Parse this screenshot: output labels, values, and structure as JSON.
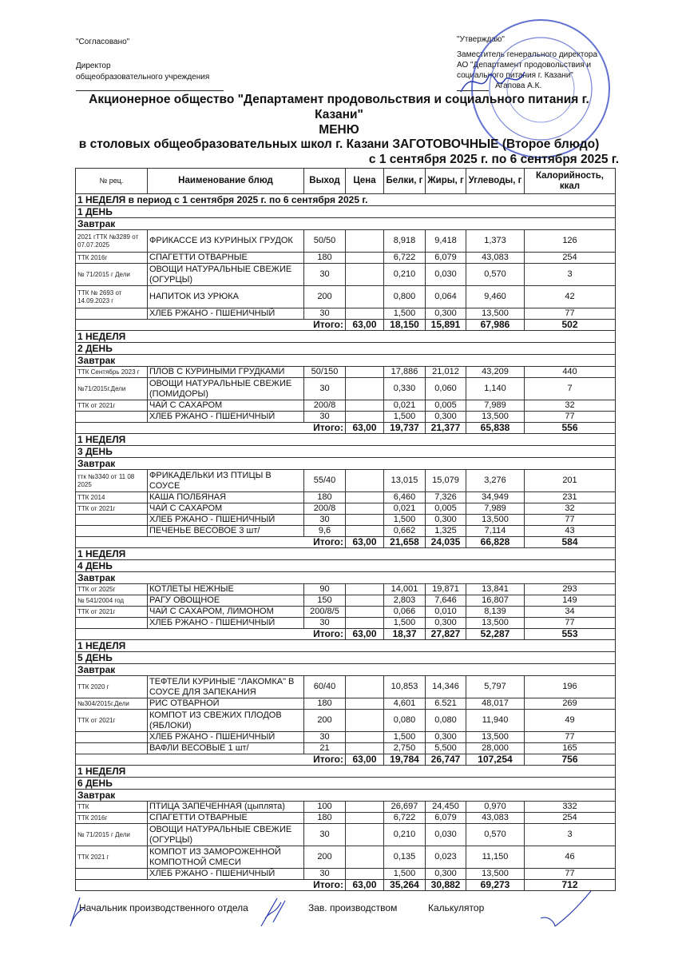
{
  "header": {
    "left_approved": "\"Согласовано\"",
    "left_position_1": "Директор",
    "left_position_2": "общеобразовательного учреждения",
    "right_approved": "\"Утверждаю\"",
    "right_position_1": "Заместитель генерального директора",
    "right_position_2": "АО \"Департамент продовольствия и",
    "right_position_3": "социального питания г. Казани\"",
    "right_name": "Агапова А.К."
  },
  "stamp": {
    "text": "РЕСПУБЛИКА ТАТАРСТАН ГАЗАН ШӘҺӘРЕ ИНН 1660075919 АКЦИОНЕРНОЕ ОБЩЕСТВО ДЛЯ ДОКУМЕНТОВ №7",
    "color": "#3b4fc4"
  },
  "title": {
    "org_line_1": "Акционерное общество \"Департамент продовольствия и социального питания г.",
    "org_line_2": "Казани\"",
    "menu": "МЕНЮ",
    "subtitle": "в столовых общеобразовательных школ г. Казани ЗАГОТОВОЧНЫЕ (Второе блюдо)",
    "period": "с 1 сентября 2025 г. по 6 сентября 2025 г."
  },
  "table": {
    "columns": [
      "№ рец.",
      "Наименование блюд",
      "Выход",
      "Цена",
      "Белки, г",
      "Жиры, г",
      "Углеводы, г",
      "Калорийность, ккал"
    ],
    "days": [
      {
        "week": "1 НЕДЕЛЯ в период  с 1 сентября 2025 г. по 6 сентября 2025 г.",
        "day": "1 ДЕНЬ",
        "meal": "Завтрак",
        "items": [
          {
            "code": "2021 гТТК №3289 от 07.07.2025",
            "name": "ФРИКАССЕ ИЗ КУРИНЫХ ГРУДОК",
            "yield": "50/50",
            "price": "",
            "protein": "8,918",
            "fat": "9,418",
            "carbs": "1,373",
            "kcal": "126",
            "lines": 2
          },
          {
            "code": "ТТК 2016г",
            "name": "СПАГЕТТИ ОТВАРНЫЕ",
            "yield": "180",
            "price": "",
            "protein": "6,722",
            "fat": "6,079",
            "carbs": "43,083",
            "kcal": "254",
            "lines": 1
          },
          {
            "code": "№ 71/2015 г Дели",
            "name": "ОВОЩИ НАТУРАЛЬНЫЕ СВЕЖИЕ (ОГУРЦЫ)",
            "yield": "30",
            "price": "",
            "protein": "0,210",
            "fat": "0,030",
            "carbs": "0,570",
            "kcal": "3",
            "lines": 2
          },
          {
            "code": "ТТК № 2693 от 14.09.2023 г",
            "name": "НАПИТОК ИЗ УРЮКА",
            "yield": "200",
            "price": "",
            "protein": "0,800",
            "fat": "0,064",
            "carbs": "9,460",
            "kcal": "42",
            "lines": 2
          },
          {
            "code": "",
            "name": "ХЛЕБ РЖАНО - ПШЕНИЧНЫЙ",
            "yield": "30",
            "price": "",
            "protein": "1,500",
            "fat": "0,300",
            "carbs": "13,500",
            "kcal": "77",
            "lines": 1
          }
        ],
        "total": {
          "label": "Итого:",
          "price": "63,00",
          "protein": "18,150",
          "fat": "15,891",
          "carbs": "67,986",
          "kcal": "502"
        }
      },
      {
        "week": "1 НЕДЕЛЯ",
        "day": "2 ДЕНЬ",
        "meal": "Завтрак",
        "items": [
          {
            "code": "ТТК Сентябрь 2023 г",
            "name": "ПЛОВ С КУРИНЫМИ ГРУДКАМИ",
            "yield": "50/150",
            "price": "",
            "protein": "17,886",
            "fat": "21,012",
            "carbs": "43,209",
            "kcal": "440",
            "lines": 1
          },
          {
            "code": "№71/2015г.Дели",
            "name": "ОВОЩИ НАТУРАЛЬНЫЕ СВЕЖИЕ (ПОМИДОРЫ)",
            "yield": "30",
            "price": "",
            "protein": "0,330",
            "fat": "0,060",
            "carbs": "1,140",
            "kcal": "7",
            "lines": 2
          },
          {
            "code": "ТТК от 2021г",
            "name": "ЧАЙ С САХАРОМ",
            "yield": "200/8",
            "price": "",
            "protein": "0,021",
            "fat": "0,005",
            "carbs": "7,989",
            "kcal": "32",
            "lines": 1
          },
          {
            "code": "",
            "name": "ХЛЕБ РЖАНО - ПШЕНИЧНЫЙ",
            "yield": "30",
            "price": "",
            "protein": "1,500",
            "fat": "0,300",
            "carbs": "13,500",
            "kcal": "77",
            "lines": 1
          }
        ],
        "total": {
          "label": "Итого:",
          "price": "63,00",
          "protein": "19,737",
          "fat": "21,377",
          "carbs": "65,838",
          "kcal": "556"
        }
      },
      {
        "week": "1 НЕДЕЛЯ",
        "day": "3 ДЕНЬ",
        "meal": "Завтрак",
        "items": [
          {
            "code": "ттк №3340 от 11 08 2025",
            "name": "ФРИКАДЕЛЬКИ ИЗ ПТИЦЫ В СОУСЕ",
            "yield": "55/40",
            "price": "",
            "protein": "13,015",
            "fat": "15,079",
            "carbs": "3,276",
            "kcal": "201",
            "lines": 2
          },
          {
            "code": "ТТК 2014",
            "name": "КАША ПОЛБЯНАЯ",
            "yield": "180",
            "price": "",
            "protein": "6,460",
            "fat": "7,326",
            "carbs": "34,949",
            "kcal": "231",
            "lines": 1
          },
          {
            "code": "ТТК от 2021г",
            "name": "ЧАЙ С САХАРОМ",
            "yield": "200/8",
            "price": "",
            "protein": "0,021",
            "fat": "0,005",
            "carbs": "7,989",
            "kcal": "32",
            "lines": 1
          },
          {
            "code": "",
            "name": "ХЛЕБ РЖАНО - ПШЕНИЧНЫЙ",
            "yield": "30",
            "price": "",
            "protein": "1,500",
            "fat": "0,300",
            "carbs": "13,500",
            "kcal": "77",
            "lines": 1
          },
          {
            "code": "",
            "name": "ПЕЧЕНЬЕ ВЕСОВОЕ 3 шт/",
            "yield": "9,6",
            "price": "",
            "protein": "0,662",
            "fat": "1,325",
            "carbs": "7,114",
            "kcal": "43",
            "lines": 1
          }
        ],
        "total": {
          "label": "Итого:",
          "price": "63,00",
          "protein": "21,658",
          "fat": "24,035",
          "carbs": "66,828",
          "kcal": "584"
        }
      },
      {
        "week": "1 НЕДЕЛЯ",
        "day": "4 ДЕНЬ",
        "meal": "Завтрак",
        "items": [
          {
            "code": "ТТК от 2025г",
            "name": "КОТЛЕТЫ НЕЖНЫЕ",
            "yield": "90",
            "price": "",
            "protein": "14,001",
            "fat": "19,871",
            "carbs": "13,841",
            "kcal": "293",
            "lines": 1
          },
          {
            "code": "№ 541/2004 год",
            "name": "РАГУ ОВОЩНОЕ",
            "yield": "150",
            "price": "",
            "protein": "2,803",
            "fat": "7,646",
            "carbs": "16,807",
            "kcal": "149",
            "lines": 1
          },
          {
            "code": "ТТК от 2021г",
            "name": "ЧАЙ  С САХАРОМ, ЛИМОНОМ",
            "yield": "200/8/5",
            "price": "",
            "protein": "0,066",
            "fat": "0,010",
            "carbs": "8,139",
            "kcal": "34",
            "lines": 1
          },
          {
            "code": "",
            "name": "ХЛЕБ РЖАНО - ПШЕНИЧНЫЙ",
            "yield": "30",
            "price": "",
            "protein": "1,500",
            "fat": "0,300",
            "carbs": "13,500",
            "kcal": "77",
            "lines": 1
          }
        ],
        "total": {
          "label": "Итого:",
          "price": "63,00",
          "protein": "18,37",
          "fat": "27,827",
          "carbs": "52,287",
          "kcal": "553"
        }
      },
      {
        "week": "1 НЕДЕЛЯ",
        "day": "5 ДЕНЬ",
        "meal": "Завтрак",
        "items": [
          {
            "code": "ТТК 2020 г",
            "name": "ТЕФТЕЛИ КУРИНЫЕ \"ЛАКОМКА\" В СОУСЕ ДЛЯ ЗАПЕКАНИЯ",
            "yield": "60/40",
            "price": "",
            "protein": "10,853",
            "fat": "14,346",
            "carbs": "5,797",
            "kcal": "196",
            "lines": 2
          },
          {
            "code": "№304/2015г.Дели",
            "name": "РИС ОТВАРНОЙ",
            "yield": "180",
            "price": "",
            "protein": "4,601",
            "fat": "6.521",
            "carbs": "48,017",
            "kcal": "269",
            "lines": 1
          },
          {
            "code": "ТТК от 2021г",
            "name": "КОМПОТ ИЗ СВЕЖИХ ПЛОДОВ (ЯБЛОКИ)",
            "yield": "200",
            "price": "",
            "protein": "0,080",
            "fat": "0,080",
            "carbs": "11,940",
            "kcal": "49",
            "lines": 2
          },
          {
            "code": "",
            "name": "ХЛЕБ РЖАНО - ПШЕНИЧНЫЙ",
            "yield": "30",
            "price": "",
            "protein": "1,500",
            "fat": "0,300",
            "carbs": "13,500",
            "kcal": "77",
            "lines": 1
          },
          {
            "code": "",
            "name": "ВАФЛИ ВЕСОВЫЕ 1 шт/",
            "yield": "21",
            "price": "",
            "protein": "2,750",
            "fat": "5,500",
            "carbs": "28,000",
            "kcal": "165",
            "lines": 1
          }
        ],
        "total": {
          "label": "Итого:",
          "price": "63,00",
          "protein": "19,784",
          "fat": "26,747",
          "carbs": "107,254",
          "kcal": "756"
        }
      },
      {
        "week": "1 НЕДЕЛЯ",
        "day": "6 ДЕНЬ",
        "meal": "Завтрак",
        "items": [
          {
            "code": "ТТК",
            "name": "ПТИЦА ЗАПЕЧЕННАЯ (цыплята)",
            "yield": "100",
            "price": "",
            "protein": "26,697",
            "fat": "24,450",
            "carbs": "0,970",
            "kcal": "332",
            "lines": 1
          },
          {
            "code": "ТТК 2016г",
            "name": "СПАГЕТТИ ОТВАРНЫЕ",
            "yield": "180",
            "price": "",
            "protein": "6,722",
            "fat": "6,079",
            "carbs": "43,083",
            "kcal": "254",
            "lines": 1
          },
          {
            "code": "№ 71/2015 г Дели",
            "name": "ОВОЩИ НАТУРАЛЬНЫЕ СВЕЖИЕ (ОГУРЦЫ)",
            "yield": "30",
            "price": "",
            "protein": "0,210",
            "fat": "0,030",
            "carbs": "0,570",
            "kcal": "3",
            "lines": 2
          },
          {
            "code": "ТТК 2021 г",
            "name": "КОМПОТ ИЗ ЗАМОРОЖЕННОЙ КОМПОТНОЙ СМЕСИ",
            "yield": "200",
            "price": "",
            "protein": "0,135",
            "fat": "0,023",
            "carbs": "11,150",
            "kcal": "46",
            "lines": 2
          },
          {
            "code": "",
            "name": "ХЛЕБ РЖАНО - ПШЕНИЧНЫЙ",
            "yield": "30",
            "price": "",
            "protein": "1,500",
            "fat": "0,300",
            "carbs": "13,500",
            "kcal": "77",
            "lines": 1
          }
        ],
        "total": {
          "label": "Итого:",
          "price": "63,00",
          "protein": "35,264",
          "fat": "30,882",
          "carbs": "69,273",
          "kcal": "712"
        }
      }
    ]
  },
  "footer": {
    "head_of_production": "Начальник производственного отдела",
    "production_manager": "Зав. производством",
    "calculator": "Калькулятор"
  }
}
